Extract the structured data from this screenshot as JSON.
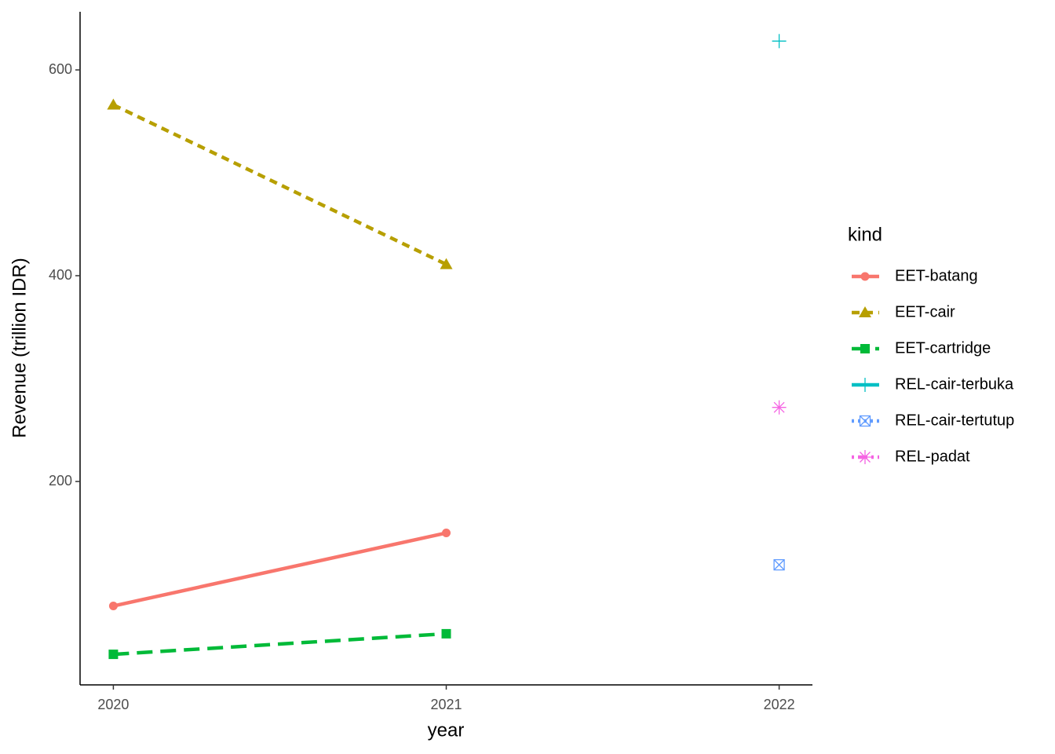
{
  "chart_data": {
    "type": "line",
    "x_label": "year",
    "y_label": "Revenue (trillion IDR)",
    "x": [
      2020,
      2021,
      2022
    ],
    "xlim": [
      2019.9,
      2022.1
    ],
    "xticks": [
      2020,
      2021,
      2022
    ],
    "ylim": [
      2.3,
      656.5
    ],
    "yticks": [
      200,
      400,
      600
    ],
    "legend_title": "kind",
    "legend_position": "right",
    "series": [
      {
        "name": "EET-batang",
        "color": "#F8766D",
        "shape": "circle",
        "linetype": "solid",
        "values": [
          79,
          150,
          null
        ]
      },
      {
        "name": "EET-cair",
        "color": "#B79F00",
        "shape": "triangle",
        "linetype": "dashed",
        "values": [
          566,
          411,
          null
        ]
      },
      {
        "name": "EET-cartridge",
        "color": "#00BA38",
        "shape": "square",
        "linetype": "longdash",
        "values": [
          32,
          52,
          null
        ]
      },
      {
        "name": "REL-cair-terbuka",
        "color": "#00BFC4",
        "shape": "plus",
        "linetype": "solid",
        "values": [
          null,
          null,
          628
        ]
      },
      {
        "name": "REL-cair-tertutup",
        "color": "#619CFF",
        "shape": "square-cross",
        "linetype": "dotted",
        "values": [
          null,
          null,
          119
        ]
      },
      {
        "name": "REL-padat",
        "color": "#F564E3",
        "shape": "asterisk",
        "linetype": "dotdash",
        "values": [
          null,
          null,
          272
        ]
      }
    ]
  }
}
